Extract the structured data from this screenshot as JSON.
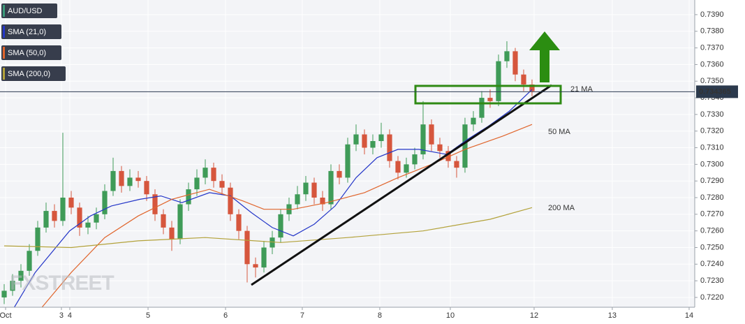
{
  "chart_data": {
    "type": "candlestick",
    "watermark": "FXSTREET",
    "xlim": [
      -0.5,
      82.42
    ],
    "ylim": [
      0.72141,
      0.73988
    ],
    "xticks": [
      {
        "value": 0.17,
        "label": "Oct"
      },
      {
        "value": 6.83,
        "label": "3"
      },
      {
        "value": 7.83,
        "label": "4"
      },
      {
        "value": 17.17,
        "label": "5"
      },
      {
        "value": 26.42,
        "label": "6"
      },
      {
        "value": 35.58,
        "label": "7"
      },
      {
        "value": 44.83,
        "label": "8"
      },
      {
        "value": 53.25,
        "label": "10"
      },
      {
        "value": 63.25,
        "label": "12"
      },
      {
        "value": 72.58,
        "label": "13"
      },
      {
        "value": 81.75,
        "label": "14"
      }
    ],
    "yticks": [
      {
        "value": 0.722,
        "label": "0.7220"
      },
      {
        "value": 0.723,
        "label": "0.7230"
      },
      {
        "value": 0.724,
        "label": "0.7240"
      },
      {
        "value": 0.725,
        "label": "0.7250"
      },
      {
        "value": 0.726,
        "label": "0.7260"
      },
      {
        "value": 0.727,
        "label": "0.7270"
      },
      {
        "value": 0.728,
        "label": "0.7280"
      },
      {
        "value": 0.729,
        "label": "0.7290"
      },
      {
        "value": 0.73,
        "label": "0.7300"
      },
      {
        "value": 0.731,
        "label": "0.7310"
      },
      {
        "value": 0.732,
        "label": "0.7320"
      },
      {
        "value": 0.733,
        "label": "0.7330"
      },
      {
        "value": 0.734,
        "label": "0.7340"
      },
      {
        "value": 0.735,
        "label": "0.7350"
      },
      {
        "value": 0.736,
        "label": "0.7360"
      },
      {
        "value": 0.737,
        "label": "0.7370"
      },
      {
        "value": 0.738,
        "label": "0.7380"
      },
      {
        "value": 0.739,
        "label": "0.7390"
      }
    ],
    "grid": true,
    "price": 0.734365,
    "series": [
      {
        "name": "AUD/USD",
        "type": "candlestick",
        "color": "#3a9a7a",
        "up_color": "#3f9b58",
        "down_color": "#d6563d",
        "open": [
          0.722,
          0.7224,
          0.723,
          0.7236,
          0.7248,
          0.7262,
          0.7272,
          0.7266,
          0.728,
          0.7274,
          0.7262,
          0.7265,
          0.727,
          0.7284,
          0.7296,
          0.7287,
          0.7292,
          0.729,
          0.7282,
          0.727,
          0.7262,
          0.7255,
          0.7276,
          0.7285,
          0.7292,
          0.7298,
          0.729,
          0.7286,
          0.727,
          0.726,
          0.724,
          0.7238,
          0.725,
          0.7256,
          0.727,
          0.7276,
          0.7282,
          0.7289,
          0.728,
          0.7276,
          0.7296,
          0.7292,
          0.7312,
          0.7318,
          0.731,
          0.7314,
          0.7318,
          0.7302,
          0.7295,
          0.73,
          0.7306,
          0.7324,
          0.7312,
          0.7308,
          0.7302,
          0.7298,
          0.7324,
          0.7328,
          0.734,
          0.7338,
          0.7362,
          0.7368,
          0.7354,
          0.7348
        ],
        "high": [
          0.7228,
          0.7234,
          0.724,
          0.7252,
          0.7266,
          0.7277,
          0.7276,
          0.7319,
          0.7284,
          0.7277,
          0.7269,
          0.7274,
          0.7288,
          0.7304,
          0.7299,
          0.7297,
          0.7296,
          0.7293,
          0.7285,
          0.7273,
          0.7266,
          0.7279,
          0.7289,
          0.7297,
          0.7303,
          0.7301,
          0.7294,
          0.7289,
          0.7273,
          0.7263,
          0.7244,
          0.7254,
          0.726,
          0.7273,
          0.728,
          0.7287,
          0.7293,
          0.7292,
          0.7284,
          0.73,
          0.73,
          0.7316,
          0.7324,
          0.7321,
          0.7318,
          0.7325,
          0.7321,
          0.7305,
          0.7304,
          0.731,
          0.7338,
          0.7327,
          0.7316,
          0.7311,
          0.7305,
          0.7328,
          0.7332,
          0.7344,
          0.7345,
          0.7366,
          0.7374,
          0.737,
          0.7357,
          0.7351
        ],
        "low": [
          0.7216,
          0.7221,
          0.7226,
          0.7233,
          0.7245,
          0.7259,
          0.7262,
          0.7263,
          0.727,
          0.7257,
          0.7258,
          0.7261,
          0.7267,
          0.7281,
          0.7283,
          0.7284,
          0.7286,
          0.7278,
          0.7266,
          0.7258,
          0.7248,
          0.7252,
          0.7272,
          0.7281,
          0.7288,
          0.7286,
          0.7282,
          0.7266,
          0.7255,
          0.7229,
          0.7232,
          0.7235,
          0.7246,
          0.7253,
          0.7266,
          0.7273,
          0.7278,
          0.7276,
          0.7272,
          0.7273,
          0.7288,
          0.7289,
          0.7308,
          0.7306,
          0.7306,
          0.731,
          0.7298,
          0.7291,
          0.7292,
          0.7297,
          0.7303,
          0.7308,
          0.7304,
          0.7298,
          0.7292,
          0.7295,
          0.732,
          0.7325,
          0.7334,
          0.7335,
          0.7358,
          0.735,
          0.7344,
          0.7341
        ],
        "close": [
          0.7224,
          0.723,
          0.7236,
          0.7248,
          0.7262,
          0.7272,
          0.7266,
          0.728,
          0.7274,
          0.7262,
          0.7265,
          0.727,
          0.7284,
          0.7296,
          0.7287,
          0.7292,
          0.729,
          0.7282,
          0.727,
          0.7262,
          0.7255,
          0.7276,
          0.7285,
          0.7292,
          0.7298,
          0.729,
          0.7286,
          0.727,
          0.726,
          0.724,
          0.7238,
          0.725,
          0.7256,
          0.727,
          0.7276,
          0.7282,
          0.7289,
          0.728,
          0.7276,
          0.7296,
          0.7292,
          0.7312,
          0.7318,
          0.731,
          0.7314,
          0.7318,
          0.7302,
          0.7295,
          0.73,
          0.7306,
          0.7324,
          0.7312,
          0.7308,
          0.7302,
          0.7298,
          0.7324,
          0.7328,
          0.734,
          0.7338,
          0.7362,
          0.7368,
          0.7354,
          0.7348,
          0.7344
        ]
      },
      {
        "name": "SMA (21,0)",
        "type": "line",
        "color": "#2436c8",
        "x": [
          1.2,
          3.7,
          7.8,
          10.3,
          12.8,
          16.2,
          18.7,
          21.2,
          24.5,
          27,
          29.5,
          32,
          34.5,
          37,
          39.5,
          42,
          44.5,
          47,
          49.5,
          52.8,
          55.3,
          57.8,
          60.3,
          63
        ],
        "values": [
          0.7214,
          0.7235,
          0.726,
          0.7269,
          0.7275,
          0.7279,
          0.7281,
          0.7277,
          0.7283,
          0.7281,
          0.7271,
          0.7262,
          0.7257,
          0.7264,
          0.7275,
          0.7292,
          0.7304,
          0.7309,
          0.7309,
          0.7306,
          0.7315,
          0.7323,
          0.7332,
          0.7345
        ]
      },
      {
        "name": "SMA (50,0)",
        "type": "line",
        "color": "#e0652c",
        "x": [
          4.5,
          8,
          12,
          16,
          20,
          24.5,
          28.5,
          31,
          34.5,
          38.5,
          43,
          47,
          51,
          55,
          59.5,
          63
        ],
        "values": [
          0.7214,
          0.7235,
          0.7256,
          0.7269,
          0.7279,
          0.7285,
          0.7278,
          0.7273,
          0.7273,
          0.7277,
          0.7283,
          0.7292,
          0.73,
          0.7309,
          0.7317,
          0.7324
        ]
      },
      {
        "name": "SMA (200,0)",
        "type": "line",
        "color": "#b3a23a",
        "x": [
          0,
          8,
          16,
          24,
          33,
          41,
          50,
          58,
          63
        ],
        "values": [
          0.7251,
          0.725,
          0.7254,
          0.7256,
          0.7253,
          0.7256,
          0.726,
          0.7267,
          0.7274
        ]
      }
    ],
    "annotations": [
      "21 MA",
      "50 MA",
      "200 MA"
    ]
  }
}
